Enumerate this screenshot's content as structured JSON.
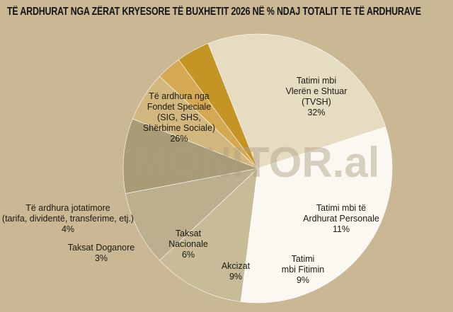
{
  "title": "TË ARDHURAT NGA ZËRAT KRYESORE TË BUXHETIT 2026  NË % NDAJ TOTALIT TE TË ARDHURAVE",
  "watermark": "MONITOR.al",
  "colors": {
    "background": "#c9b893",
    "text": "#1e1a12"
  },
  "chart_data": {
    "type": "pie",
    "title": "TË ARDHURAT NGA ZËRAT KRYESORE TË BUXHETIT 2026  NË % NDAJ TOTALIT TE TË ARDHURAVE",
    "unit": "%",
    "slices": [
      {
        "label_lines": [
          "Tatimi mbi",
          "Vlerën e Shtuar",
          "(TVSH)"
        ],
        "value": 32,
        "value_label": "32%",
        "color": "#fbf8f1"
      },
      {
        "label_lines": [
          "Tatimi mbi të",
          "Ardhurat Personale"
        ],
        "value": 11,
        "value_label": "11%",
        "color": "#c8bb98"
      },
      {
        "label_lines": [
          "Tatimi",
          "mbi Fitimin"
        ],
        "value": 9,
        "value_label": "9%",
        "color": "#bcaf8d"
      },
      {
        "label_lines": [
          "Akcizat"
        ],
        "value": 9,
        "value_label": "9%",
        "color": "#a89b76"
      },
      {
        "label_lines": [
          "Taksat",
          "Nacionale"
        ],
        "value": 6,
        "value_label": "6%",
        "color": "#d2b87e"
      },
      {
        "label_lines": [
          "Taksat Doganore"
        ],
        "value": 3,
        "value_label": "3%",
        "color": "#d5a951"
      },
      {
        "label_lines": [
          "Të ardhura jotatimore",
          "(tarifa, dividentë, transferime, etj.)"
        ],
        "value": 4,
        "value_label": "4%",
        "color": "#c49425"
      },
      {
        "label_lines": [
          "Të ardhura nga",
          "Fondet Speciale",
          "(SIG, SHS,",
          "Shërbime Sociale)"
        ],
        "value": 26,
        "value_label": "26%",
        "color": "#e5dcc2"
      }
    ]
  }
}
